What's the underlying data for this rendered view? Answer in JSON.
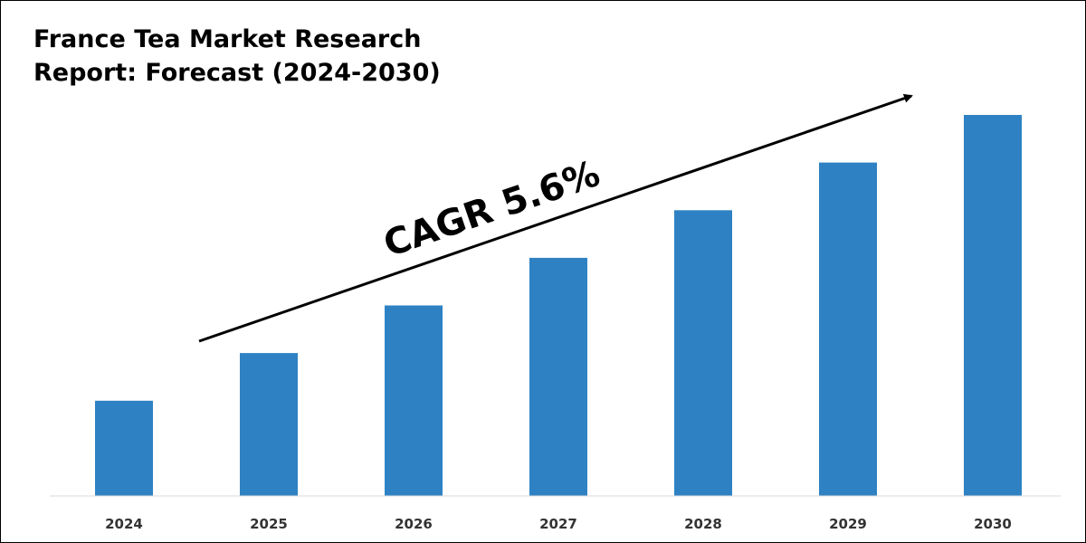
{
  "chart_data": {
    "type": "bar",
    "title_lines": [
      "France Tea Market Research",
      "Report: Forecast (2024-2030)"
    ],
    "categories": [
      "2024",
      "2025",
      "2026",
      "2027",
      "2028",
      "2029",
      "2030"
    ],
    "values": [
      1.0,
      1.5,
      2.0,
      2.5,
      3.0,
      3.5,
      4.0
    ],
    "ylim": [
      0,
      4.0
    ],
    "grid": false,
    "legend": "none",
    "bar_color": "#2e82c3",
    "annotation": {
      "text": "CAGR 5.6%",
      "kind": "upward-arrow"
    }
  }
}
